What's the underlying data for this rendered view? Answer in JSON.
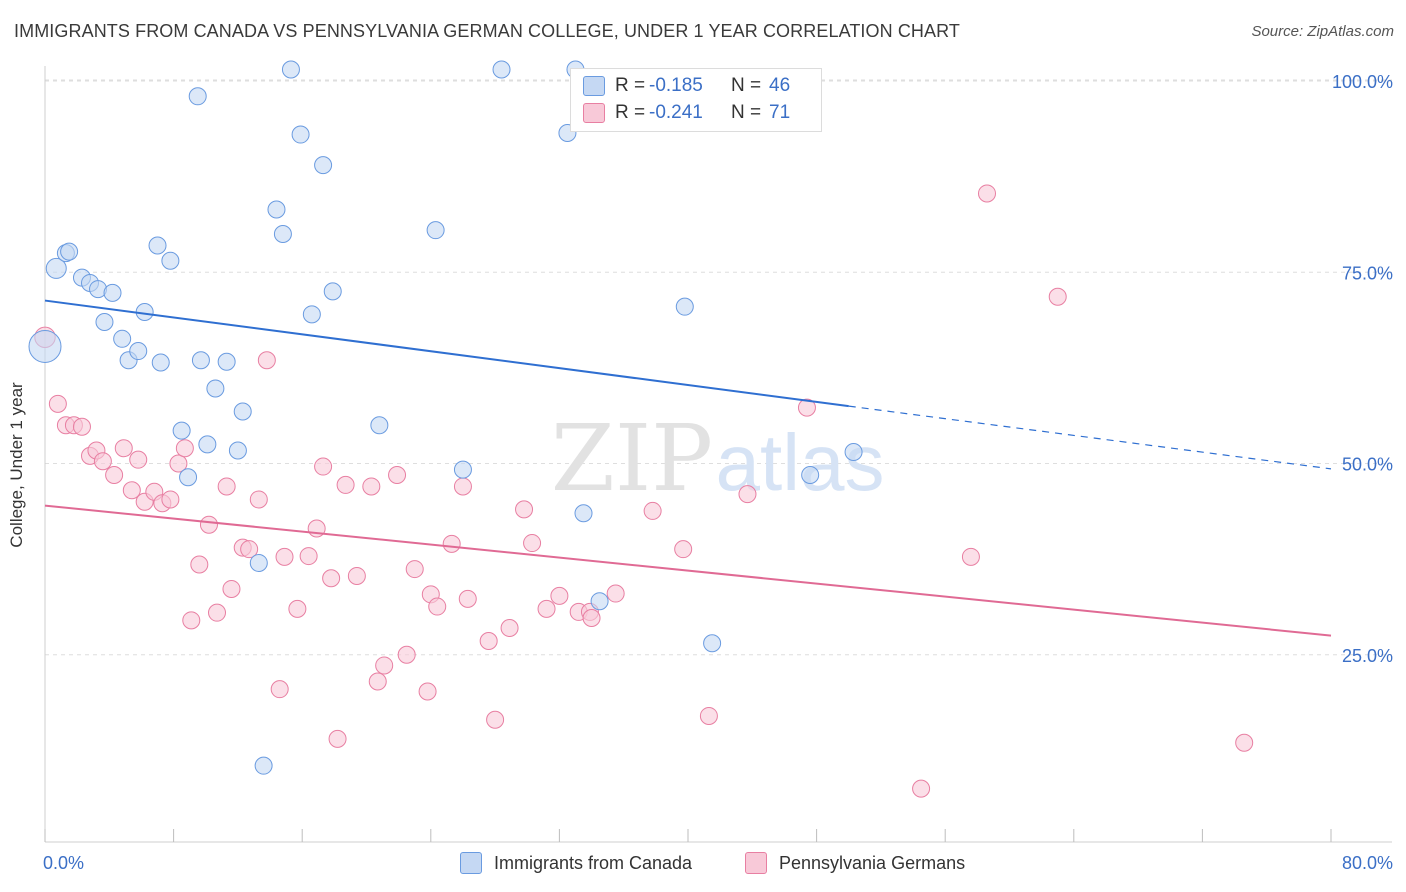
{
  "title": "IMMIGRANTS FROM CANADA VS PENNSYLVANIA GERMAN COLLEGE, UNDER 1 YEAR CORRELATION CHART",
  "source": "Source: ZipAtlas.com",
  "watermark_zip": "ZIP",
  "watermark_atlas": "atlas",
  "legend_top": [
    {
      "r_label": "R =",
      "r_value": "-0.185",
      "n_label": "N =",
      "n_value": "46"
    },
    {
      "r_label": "R =",
      "r_value": "-0.241",
      "n_label": "N =",
      "n_value": "71"
    }
  ],
  "chart_data": {
    "type": "scatter",
    "title": "IMMIGRANTS FROM CANADA VS PENNSYLVANIA GERMAN COLLEGE, UNDER 1 YEAR CORRELATION CHART",
    "xlabel": "",
    "ylabel": "College, Under 1 year",
    "xlim": [
      0,
      80
    ],
    "ylim": [
      0,
      102
    ],
    "x_tick_labels": [
      "0.0%",
      "80.0%"
    ],
    "y_tick_labels": [
      "25.0%",
      "50.0%",
      "75.0%",
      "100.0%"
    ],
    "y_tick_values": [
      25,
      50,
      75,
      100
    ],
    "colors": {
      "canada": "#6a9be0",
      "canada_fill": "#c5d8f3",
      "pagerman": "#e87fa2",
      "pagerman_fill": "#f8c9d8",
      "canada_line": "#2f6fd1",
      "pagerman_line": "#e06a94",
      "tick_label": "#3b6fc6"
    },
    "series": [
      {
        "name": "Immigrants from Canada",
        "r": -0.185,
        "n": 46,
        "trend": {
          "x0": 0,
          "y0": 71.3,
          "x1": 50,
          "y1": 57.5,
          "dash_to_x": 80,
          "dash_to_y": 49.3
        },
        "points": [
          [
            0.0,
            65.3,
            1.8
          ],
          [
            0.7,
            75.5,
            1.0
          ],
          [
            1.3,
            77.5,
            0.8
          ],
          [
            1.5,
            77.7,
            0.8
          ],
          [
            2.3,
            74.3,
            0.8
          ],
          [
            2.8,
            73.6,
            0.8
          ],
          [
            3.3,
            72.8,
            0.8
          ],
          [
            4.2,
            72.3,
            0.8
          ],
          [
            3.7,
            68.5,
            0.8
          ],
          [
            4.8,
            66.3,
            0.8
          ],
          [
            5.2,
            63.5,
            0.8
          ],
          [
            5.8,
            64.7,
            0.8
          ],
          [
            6.2,
            69.8,
            0.8
          ],
          [
            7.0,
            78.5,
            0.8
          ],
          [
            7.8,
            76.5,
            0.8
          ],
          [
            7.2,
            63.2,
            0.8
          ],
          [
            8.5,
            54.3,
            0.8
          ],
          [
            8.9,
            48.2,
            0.8
          ],
          [
            9.5,
            98.0,
            0.8
          ],
          [
            9.7,
            63.5,
            0.8
          ],
          [
            10.1,
            52.5,
            0.8
          ],
          [
            10.6,
            59.8,
            0.8
          ],
          [
            11.3,
            63.3,
            0.8
          ],
          [
            12.0,
            51.7,
            0.8
          ],
          [
            12.3,
            56.8,
            0.8
          ],
          [
            13.3,
            37.0,
            0.8
          ],
          [
            13.6,
            10.5,
            0.8
          ],
          [
            14.4,
            83.2,
            0.8
          ],
          [
            14.8,
            80.0,
            0.8
          ],
          [
            15.3,
            101.5,
            0.8
          ],
          [
            15.9,
            93.0,
            0.8
          ],
          [
            16.6,
            69.5,
            0.8
          ],
          [
            17.3,
            89.0,
            0.8
          ],
          [
            17.9,
            72.5,
            0.8
          ],
          [
            20.8,
            55.0,
            0.8
          ],
          [
            24.3,
            80.5,
            0.8
          ],
          [
            26.0,
            49.2,
            0.8
          ],
          [
            28.4,
            101.5,
            0.8
          ],
          [
            32.5,
            93.2,
            0.8
          ],
          [
            33.0,
            101.5,
            0.8
          ],
          [
            33.5,
            43.5,
            0.8
          ],
          [
            34.5,
            32.0,
            0.8
          ],
          [
            39.8,
            70.5,
            0.8
          ],
          [
            41.5,
            26.5,
            0.8
          ],
          [
            47.6,
            48.5,
            0.8
          ],
          [
            50.3,
            51.5,
            0.8
          ]
        ]
      },
      {
        "name": "Pennsylvania Germans",
        "r": -0.241,
        "n": 71,
        "trend": {
          "x0": 0,
          "y0": 44.5,
          "x1": 80,
          "y1": 27.5
        },
        "points": [
          [
            0.0,
            66.5,
            1.2
          ],
          [
            0.8,
            57.8,
            0.8
          ],
          [
            1.3,
            55.0,
            0.8
          ],
          [
            1.8,
            55.0,
            0.8
          ],
          [
            2.3,
            54.8,
            0.8
          ],
          [
            2.8,
            51.0,
            0.8
          ],
          [
            3.2,
            51.7,
            0.8
          ],
          [
            3.6,
            50.3,
            0.8
          ],
          [
            4.3,
            48.5,
            0.8
          ],
          [
            4.9,
            52.0,
            0.8
          ],
          [
            5.4,
            46.5,
            0.8
          ],
          [
            5.8,
            50.5,
            0.8
          ],
          [
            6.2,
            45.0,
            0.8
          ],
          [
            6.8,
            46.3,
            0.8
          ],
          [
            7.3,
            44.8,
            0.8
          ],
          [
            7.8,
            45.3,
            0.8
          ],
          [
            8.3,
            50.0,
            0.8
          ],
          [
            8.7,
            52.0,
            0.8
          ],
          [
            9.1,
            29.5,
            0.8
          ],
          [
            9.6,
            36.8,
            0.8
          ],
          [
            10.2,
            42.0,
            0.8
          ],
          [
            10.7,
            30.5,
            0.8
          ],
          [
            11.3,
            47.0,
            0.8
          ],
          [
            11.6,
            33.6,
            0.8
          ],
          [
            12.3,
            39.0,
            0.8
          ],
          [
            12.7,
            38.8,
            0.8
          ],
          [
            13.3,
            45.3,
            0.8
          ],
          [
            13.8,
            63.5,
            0.8
          ],
          [
            14.6,
            20.5,
            0.8
          ],
          [
            14.9,
            37.8,
            0.8
          ],
          [
            15.7,
            31.0,
            0.8
          ],
          [
            16.4,
            37.9,
            0.8
          ],
          [
            16.9,
            41.5,
            0.8
          ],
          [
            17.3,
            49.6,
            0.8
          ],
          [
            17.8,
            35.0,
            0.8
          ],
          [
            18.2,
            14.0,
            0.8
          ],
          [
            18.7,
            47.2,
            0.8
          ],
          [
            19.4,
            35.3,
            0.8
          ],
          [
            20.3,
            47.0,
            0.8
          ],
          [
            20.7,
            21.5,
            0.8
          ],
          [
            21.1,
            23.6,
            0.8
          ],
          [
            21.9,
            48.5,
            0.8
          ],
          [
            22.5,
            25.0,
            0.8
          ],
          [
            23.0,
            36.2,
            0.8
          ],
          [
            23.8,
            20.2,
            0.8
          ],
          [
            24.0,
            32.9,
            0.8
          ],
          [
            24.4,
            31.3,
            0.8
          ],
          [
            25.3,
            39.5,
            0.8
          ],
          [
            26.0,
            47.0,
            0.8
          ],
          [
            26.3,
            32.3,
            0.8
          ],
          [
            27.6,
            26.8,
            0.8
          ],
          [
            28.0,
            16.5,
            0.8
          ],
          [
            28.9,
            28.5,
            0.8
          ],
          [
            29.8,
            44.0,
            0.8
          ],
          [
            30.3,
            39.6,
            0.8
          ],
          [
            31.2,
            31.0,
            0.8
          ],
          [
            32.0,
            32.7,
            0.8
          ],
          [
            33.2,
            30.6,
            0.8
          ],
          [
            33.9,
            30.6,
            0.8
          ],
          [
            34.0,
            29.8,
            0.8
          ],
          [
            35.5,
            33.0,
            0.8
          ],
          [
            37.8,
            43.8,
            0.8
          ],
          [
            39.7,
            38.8,
            0.8
          ],
          [
            41.3,
            17.0,
            0.8
          ],
          [
            43.7,
            46.0,
            0.8
          ],
          [
            47.4,
            57.3,
            0.8
          ],
          [
            54.5,
            7.5,
            0.8
          ],
          [
            57.6,
            37.8,
            0.8
          ],
          [
            58.6,
            85.3,
            0.8
          ],
          [
            63.0,
            71.8,
            0.8
          ],
          [
            74.6,
            13.5,
            0.8
          ]
        ]
      }
    ]
  },
  "bottom_legend": [
    {
      "label": "Immigrants from Canada"
    },
    {
      "label": "Pennsylvania Germans"
    }
  ]
}
